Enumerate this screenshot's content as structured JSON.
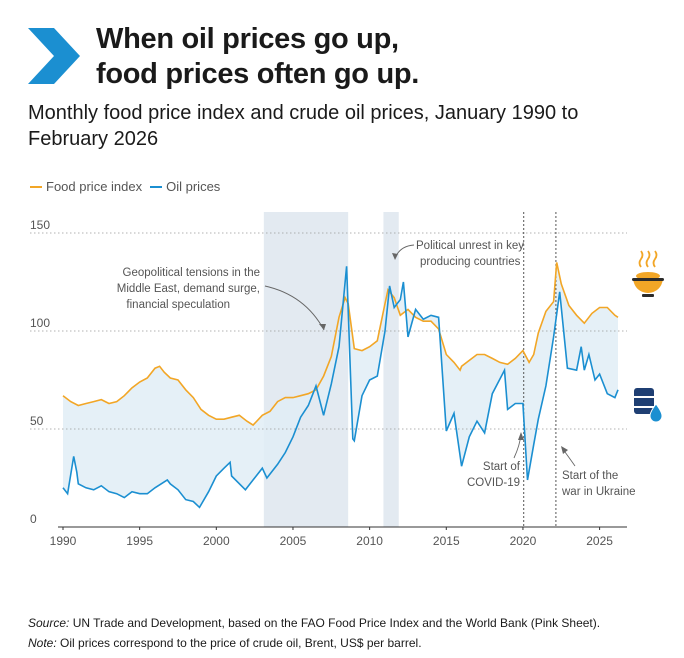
{
  "header": {
    "title_line1": "When oil prices go up,",
    "title_line2": "food prices often go up.",
    "subtitle": "Monthly food price index and crude oil prices, January 1990 to February 2026"
  },
  "colors": {
    "food": "#f2a626",
    "oil": "#1b8fd1",
    "logo": "#1b8fd1",
    "band": "#e3eaf1",
    "fill": "#e1edf6"
  },
  "icons": {
    "food": "food-bowl-icon",
    "oil": "oil-barrel-icon",
    "logo": "chevron-logo-icon"
  },
  "footer": {
    "source_label": "Source:",
    "source_text": " UN Trade and Development, based on the FAO Food Price Index and the World Bank (Pink Sheet).",
    "note_label": "Note:",
    "note_text": " Oil prices correspond to the price of crude oil, Brent, US$ per barrel."
  },
  "chart_data": {
    "type": "line",
    "title": "",
    "xlabel": "",
    "ylabel": "",
    "xlim": [
      1990,
      2026.2
    ],
    "ylim": [
      0,
      150
    ],
    "x_ticks": [
      1990,
      1995,
      2000,
      2005,
      2010,
      2015,
      2020,
      2025
    ],
    "y_ticks": [
      0,
      50,
      100,
      150
    ],
    "grid": "horizontal dotted",
    "legend_position": "top-left",
    "series": [
      {
        "name": "Food price index",
        "color": "#f2a626",
        "points": [
          [
            1990,
            67
          ],
          [
            1990.5,
            64
          ],
          [
            1991,
            62
          ],
          [
            1991.5,
            63
          ],
          [
            1992,
            64
          ],
          [
            1992.5,
            65
          ],
          [
            1993,
            63
          ],
          [
            1993.5,
            64
          ],
          [
            1994,
            67
          ],
          [
            1994.5,
            71
          ],
          [
            1995,
            74
          ],
          [
            1995.5,
            76
          ],
          [
            1996,
            81
          ],
          [
            1996.3,
            82
          ],
          [
            1996.6,
            79
          ],
          [
            1997,
            76
          ],
          [
            1997.5,
            75
          ],
          [
            1998,
            70
          ],
          [
            1998.5,
            66
          ],
          [
            1999,
            60
          ],
          [
            1999.5,
            57
          ],
          [
            2000,
            55
          ],
          [
            2000.5,
            55
          ],
          [
            2001,
            56
          ],
          [
            2001.5,
            57
          ],
          [
            2002,
            54
          ],
          [
            2002.4,
            52
          ],
          [
            2003,
            57
          ],
          [
            2003.5,
            59
          ],
          [
            2004,
            64
          ],
          [
            2004.5,
            66
          ],
          [
            2005,
            66
          ],
          [
            2005.5,
            67
          ],
          [
            2006,
            68
          ],
          [
            2006.5,
            70
          ],
          [
            2007,
            77
          ],
          [
            2007.5,
            87
          ],
          [
            2008,
            107
          ],
          [
            2008.4,
            117
          ],
          [
            2008.6,
            114
          ],
          [
            2009,
            91
          ],
          [
            2009.5,
            90
          ],
          [
            2010,
            92
          ],
          [
            2010.5,
            95
          ],
          [
            2011,
            114
          ],
          [
            2011.2,
            121
          ],
          [
            2011.6,
            117
          ],
          [
            2012,
            108
          ],
          [
            2012.5,
            111
          ],
          [
            2013,
            107
          ],
          [
            2013.5,
            105
          ],
          [
            2014,
            105
          ],
          [
            2014.5,
            101
          ],
          [
            2015,
            88
          ],
          [
            2015.5,
            84
          ],
          [
            2015.9,
            80
          ],
          [
            2016,
            82
          ],
          [
            2016.5,
            85
          ],
          [
            2017,
            88
          ],
          [
            2017.5,
            88
          ],
          [
            2018,
            86
          ],
          [
            2018.5,
            84
          ],
          [
            2019,
            83
          ],
          [
            2019.5,
            86
          ],
          [
            2020,
            90
          ],
          [
            2020.4,
            84
          ],
          [
            2020.7,
            88
          ],
          [
            2021,
            99
          ],
          [
            2021.5,
            110
          ],
          [
            2022,
            115
          ],
          [
            2022.2,
            135
          ],
          [
            2022.5,
            124
          ],
          [
            2023,
            113
          ],
          [
            2023.5,
            108
          ],
          [
            2024,
            104
          ],
          [
            2024.5,
            109
          ],
          [
            2025,
            112
          ],
          [
            2025.5,
            112
          ],
          [
            2026,
            108
          ],
          [
            2026.2,
            107
          ]
        ]
      },
      {
        "name": "Oil prices",
        "color": "#1b8fd1",
        "points": [
          [
            1990,
            20
          ],
          [
            1990.3,
            17
          ],
          [
            1990.7,
            36
          ],
          [
            1990.9,
            28
          ],
          [
            1991,
            22
          ],
          [
            1991.5,
            20
          ],
          [
            1992,
            19
          ],
          [
            1992.5,
            21
          ],
          [
            1993,
            18
          ],
          [
            1993.5,
            17
          ],
          [
            1994,
            15
          ],
          [
            1994.5,
            18
          ],
          [
            1995,
            17
          ],
          [
            1995.5,
            17
          ],
          [
            1996,
            20
          ],
          [
            1996.8,
            24
          ],
          [
            1997,
            22
          ],
          [
            1997.5,
            19
          ],
          [
            1998,
            14
          ],
          [
            1998.5,
            13
          ],
          [
            1998.9,
            10
          ],
          [
            1999.5,
            18
          ],
          [
            2000,
            26
          ],
          [
            2000.5,
            30
          ],
          [
            2000.9,
            33
          ],
          [
            2001,
            26
          ],
          [
            2001.9,
            19
          ],
          [
            2002.5,
            25
          ],
          [
            2003,
            30
          ],
          [
            2003.3,
            25
          ],
          [
            2004,
            32
          ],
          [
            2004.5,
            38
          ],
          [
            2005,
            46
          ],
          [
            2005.5,
            56
          ],
          [
            2006,
            62
          ],
          [
            2006.5,
            72
          ],
          [
            2007,
            57
          ],
          [
            2007.5,
            73
          ],
          [
            2008,
            92
          ],
          [
            2008.5,
            133
          ],
          [
            2008.9,
            45
          ],
          [
            2009,
            44
          ],
          [
            2009.5,
            67
          ],
          [
            2010,
            75
          ],
          [
            2010.5,
            77
          ],
          [
            2011,
            100
          ],
          [
            2011.3,
            123
          ],
          [
            2011.6,
            112
          ],
          [
            2012,
            116
          ],
          [
            2012.2,
            125
          ],
          [
            2012.5,
            97
          ],
          [
            2013,
            111
          ],
          [
            2013.5,
            106
          ],
          [
            2014,
            108
          ],
          [
            2014.5,
            107
          ],
          [
            2015,
            49
          ],
          [
            2015.5,
            58
          ],
          [
            2016,
            31
          ],
          [
            2016.5,
            46
          ],
          [
            2017,
            54
          ],
          [
            2017.5,
            48
          ],
          [
            2018,
            68
          ],
          [
            2018.8,
            80
          ],
          [
            2019,
            60
          ],
          [
            2019.5,
            63
          ],
          [
            2020,
            63
          ],
          [
            2020.3,
            24
          ],
          [
            2020.7,
            42
          ],
          [
            2021,
            55
          ],
          [
            2021.5,
            72
          ],
          [
            2022,
            97
          ],
          [
            2022.4,
            120
          ],
          [
            2022.9,
            81
          ],
          [
            2023.5,
            80
          ],
          [
            2023.8,
            92
          ],
          [
            2024,
            80
          ],
          [
            2024.3,
            88
          ],
          [
            2024.7,
            75
          ],
          [
            2025,
            78
          ],
          [
            2025.5,
            68
          ],
          [
            2026,
            66
          ],
          [
            2026.2,
            70
          ]
        ]
      }
    ],
    "shaded_periods": [
      [
        2003.1,
        2008.6
      ],
      [
        2010.9,
        2011.9
      ]
    ],
    "markers": [
      {
        "x": 2020.05,
        "label_line1": "Start of",
        "label_line2": "COVID-19"
      },
      {
        "x": 2022.15,
        "label_line1": "Start of the",
        "label_line2": "war in Ukraine"
      }
    ],
    "annotations": [
      {
        "line1": "Geopolitical tensions in the",
        "line2": "Middle East, demand surge,",
        "line3": "financial speculation"
      },
      {
        "line1": "Political unrest in key",
        "line2": "producing countries"
      }
    ]
  }
}
